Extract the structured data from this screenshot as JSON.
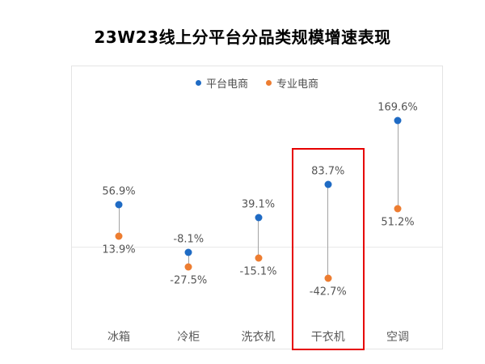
{
  "title": "23W23线上分平台分品类规模增速表现",
  "legend": [
    {
      "label": "平台电商",
      "color": "#1f6bc4"
    },
    {
      "label": "专业电商",
      "color": "#ed7d31"
    }
  ],
  "colors": {
    "series_blue": "#1f6bc4",
    "series_orange": "#ed7d31",
    "connector_gray": "#a3a3a3",
    "zero_line_gray": "#e9e9e9",
    "highlight_red": "#e60000",
    "label_gray": "#555555"
  },
  "chart_data": {
    "type": "scatter",
    "subtype": "dumbbell",
    "title": "23W23线上分平台分品类规模增速表现",
    "categories": [
      "冰箱",
      "冷柜",
      "洗衣机",
      "干衣机",
      "空调"
    ],
    "series": [
      {
        "name": "平台电商",
        "color": "#1f6bc4",
        "values": [
          56.9,
          -8.1,
          39.1,
          83.7,
          169.6
        ]
      },
      {
        "name": "专业电商",
        "color": "#ed7d31",
        "values": [
          13.9,
          -27.5,
          -15.1,
          -42.7,
          51.2
        ]
      }
    ],
    "labels": [
      [
        "56.9%",
        "-8.1%",
        "39.1%",
        "83.7%",
        "169.6%"
      ],
      [
        "13.9%",
        "-27.5%",
        "-15.1%",
        "-42.7%",
        "51.2%"
      ]
    ],
    "unit": "%",
    "xlabel": "",
    "ylabel": "",
    "ylim": [
      -80,
      200
    ],
    "grid": false,
    "zero_line": true,
    "legend_position": "top-center",
    "highlight": {
      "category": "干衣机",
      "index": 3,
      "color": "#e60000"
    }
  }
}
